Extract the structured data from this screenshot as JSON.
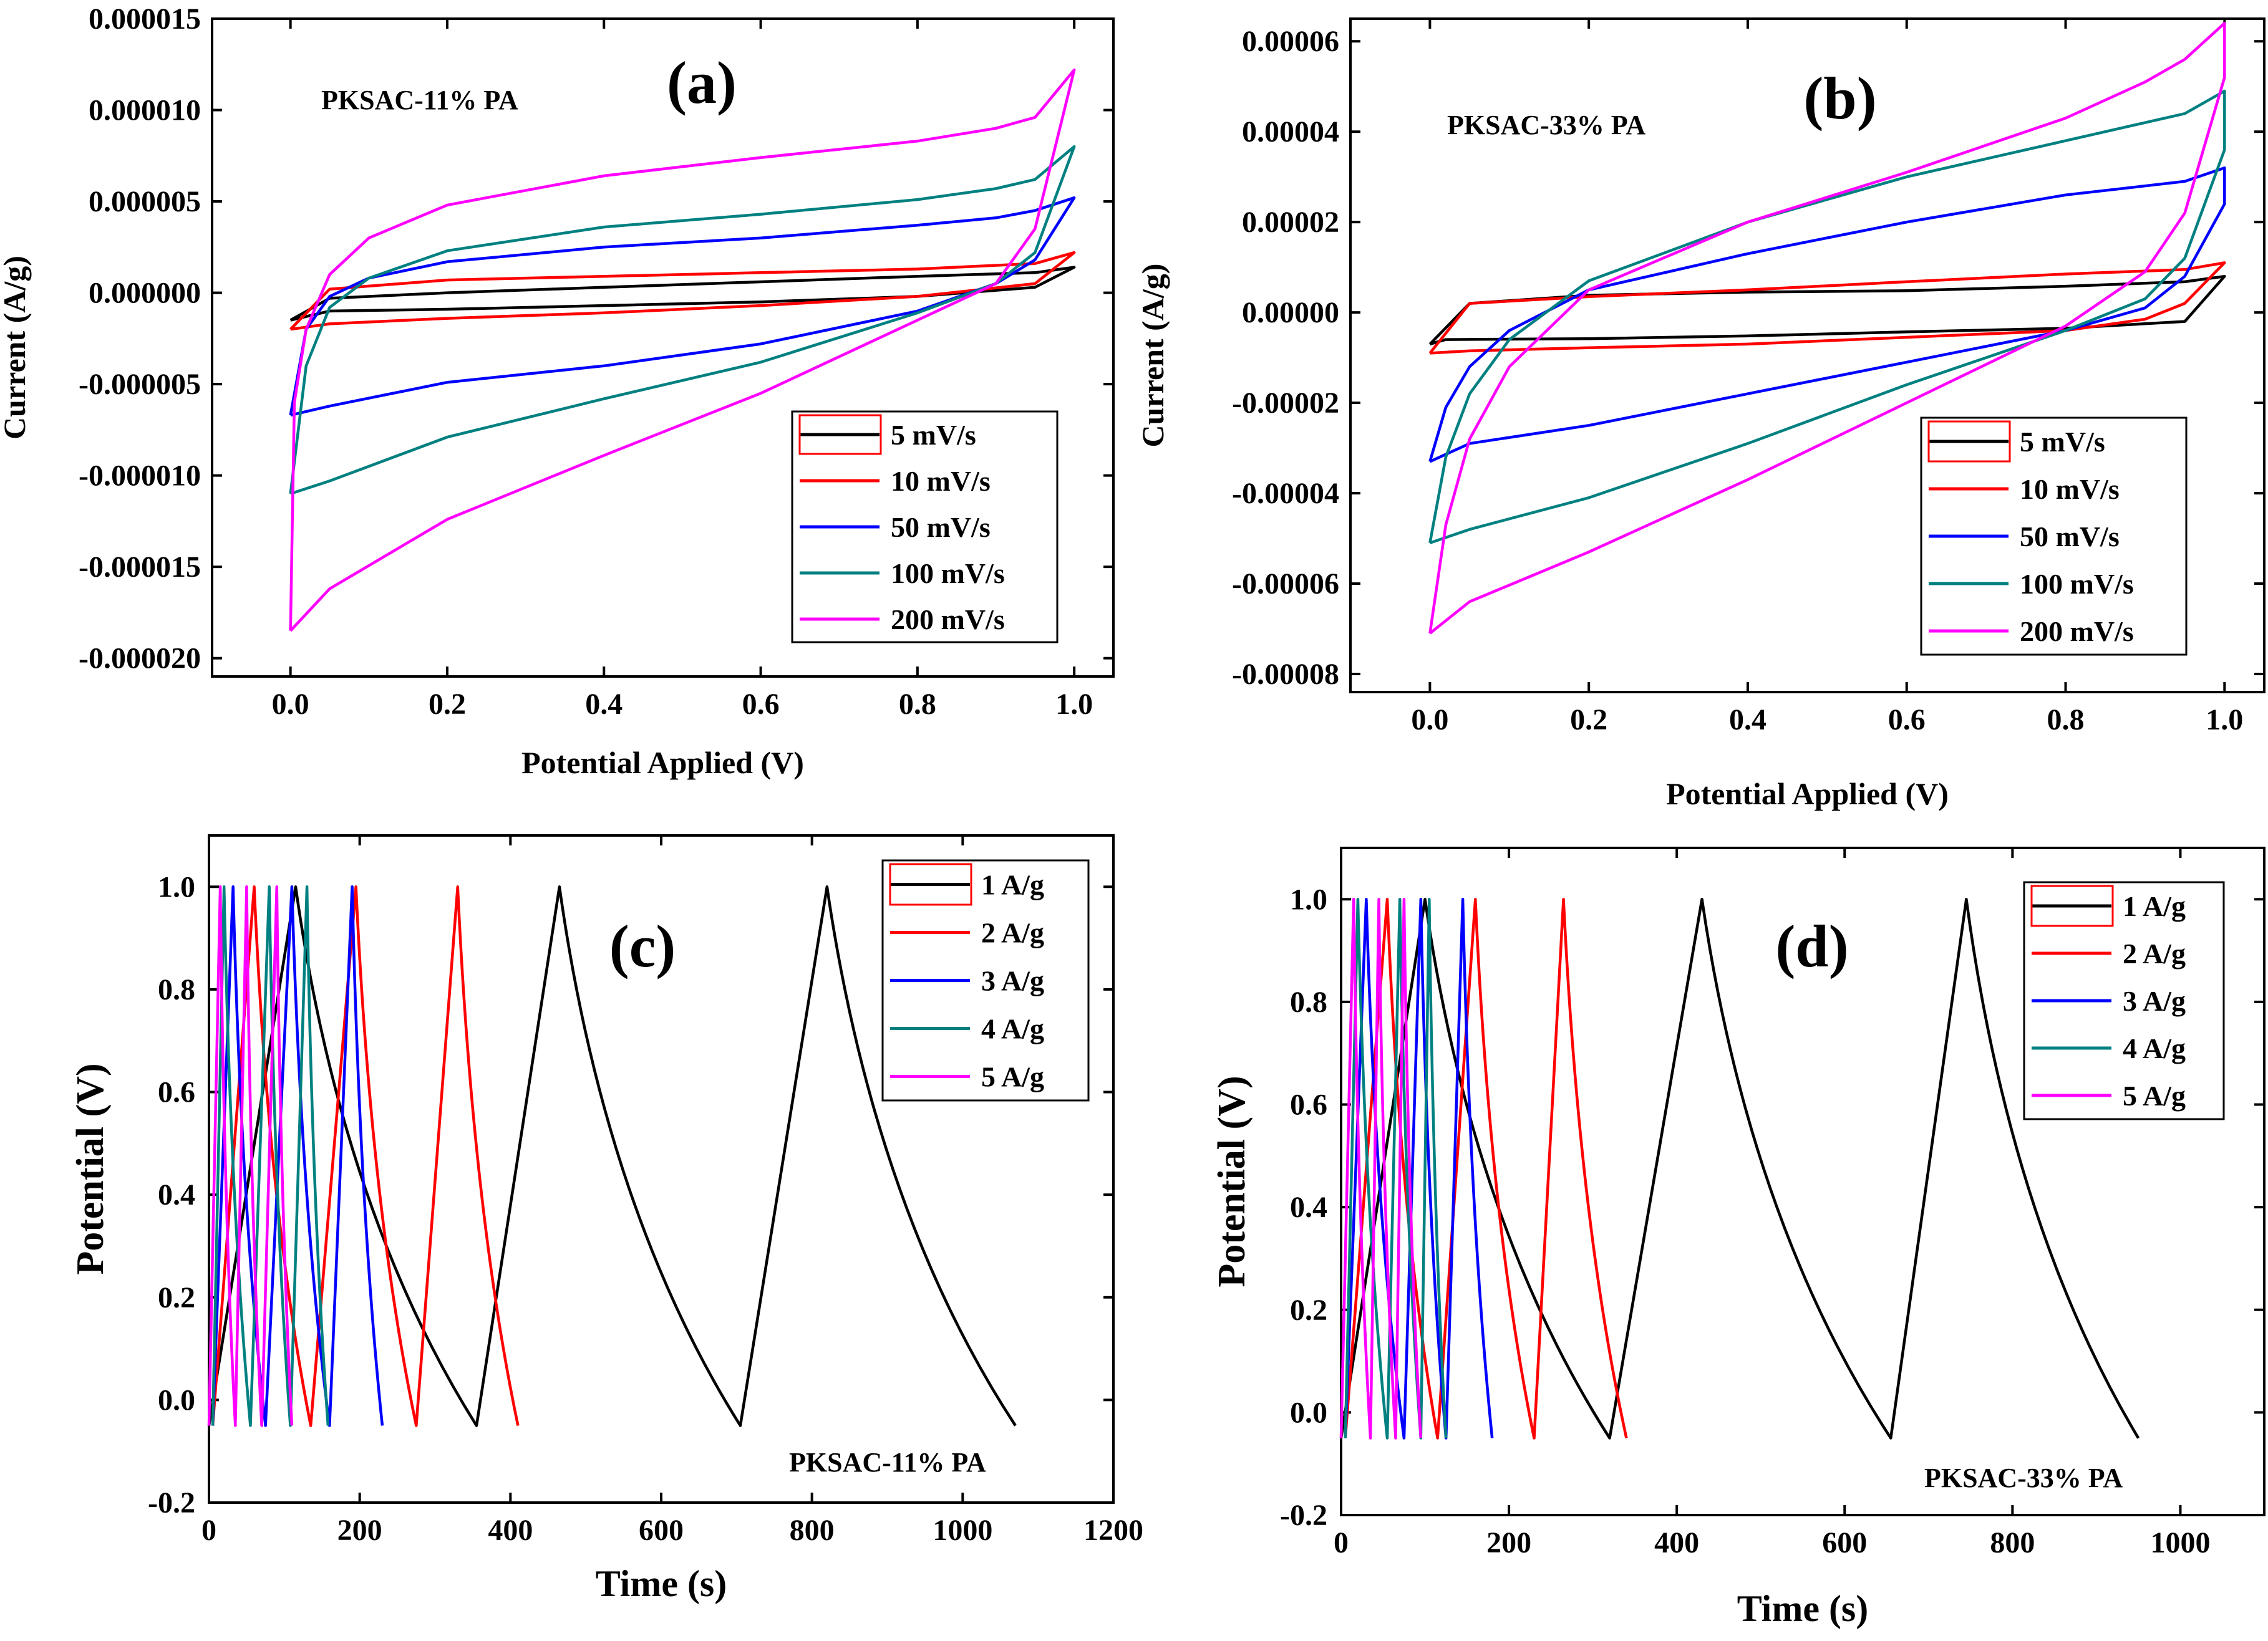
{
  "chart_data": [
    {
      "id": "a",
      "type": "line",
      "panel_label": "(a)",
      "annotation": "PKSAC-11% PA",
      "xlabel": "Potential Applied (V)",
      "ylabel": "Current (A/g)",
      "xlim": [
        -0.1,
        1.05
      ],
      "ylim": [
        -2.1e-05,
        1.5e-05
      ],
      "x_ticks": [
        0.0,
        0.2,
        0.4,
        0.6,
        0.8,
        1.0
      ],
      "x_tick_labels": [
        "0.0",
        "0.2",
        "0.4",
        "0.6",
        "0.8",
        "1.0"
      ],
      "y_ticks": [
        1.5e-05,
        1e-05,
        5e-06,
        0.0,
        -5e-06,
        -1e-05,
        -1.5e-05,
        -2e-05
      ],
      "y_tick_labels": [
        "0.000015",
        "0.000010",
        "0.000005",
        "0.000000",
        "-0.000005",
        "-0.000010",
        "-0.000015",
        "-0.000020"
      ],
      "legend_position": "bottom-right",
      "series": [
        {
          "name": "5 mV/s",
          "color": "#000000",
          "x": [
            0,
            0.05,
            0.2,
            0.4,
            0.6,
            0.8,
            0.95,
            1.0,
            1.0,
            0.95,
            0.8,
            0.6,
            0.4,
            0.2,
            0.05,
            0
          ],
          "y": [
            -1.5e-06,
            -1e-06,
            -9e-07,
            -7e-07,
            -5e-07,
            -2e-07,
            3e-07,
            1.4e-06,
            1.4e-06,
            1.1e-06,
            9e-07,
            6e-07,
            3e-07,
            0.0,
            -3e-07,
            -1.5e-06
          ]
        },
        {
          "name": "10 mV/s",
          "color": "#ff0000",
          "x": [
            0,
            0.05,
            0.2,
            0.4,
            0.6,
            0.8,
            0.95,
            1.0,
            1.0,
            0.95,
            0.8,
            0.6,
            0.4,
            0.2,
            0.05,
            0
          ],
          "y": [
            -2e-06,
            -1.7e-06,
            -1.4e-06,
            -1.1e-06,
            -7e-07,
            -2e-07,
            5e-07,
            2.2e-06,
            2.2e-06,
            1.6e-06,
            1.3e-06,
            1.1e-06,
            9e-07,
            7e-07,
            2e-07,
            -2e-06
          ]
        },
        {
          "name": "50 mV/s",
          "color": "#0000ff",
          "x": [
            0,
            0.05,
            0.2,
            0.4,
            0.6,
            0.8,
            0.9,
            0.95,
            1.0,
            1.0,
            0.95,
            0.9,
            0.8,
            0.6,
            0.4,
            0.2,
            0.1,
            0.05,
            0.02,
            0
          ],
          "y": [
            -6.7e-06,
            -6.2e-06,
            -4.9e-06,
            -4e-06,
            -2.8e-06,
            -1e-06,
            5e-07,
            1.8e-06,
            5.2e-06,
            5.2e-06,
            4.5e-06,
            4.1e-06,
            3.7e-06,
            3e-06,
            2.5e-06,
            1.7e-06,
            8e-07,
            -2e-07,
            -2e-06,
            -6.7e-06
          ]
        },
        {
          "name": "100 mV/s",
          "color": "#008080",
          "x": [
            0,
            0.05,
            0.2,
            0.4,
            0.6,
            0.8,
            0.9,
            0.95,
            1.0,
            1.0,
            0.95,
            0.9,
            0.8,
            0.6,
            0.4,
            0.2,
            0.1,
            0.05,
            0.02,
            0
          ],
          "y": [
            -1.1e-05,
            -1.03e-05,
            -7.9e-06,
            -5.8e-06,
            -3.8e-06,
            -1.1e-06,
            5e-07,
            2.2e-06,
            8e-06,
            8e-06,
            6.2e-06,
            5.7e-06,
            5.1e-06,
            4.3e-06,
            3.6e-06,
            2.3e-06,
            8e-07,
            -8e-07,
            -4e-06,
            -1.1e-05
          ]
        },
        {
          "name": "200 mV/s",
          "color": "#ff00ff",
          "x": [
            0,
            0.05,
            0.2,
            0.4,
            0.6,
            0.8,
            0.9,
            0.95,
            1.0,
            1.0,
            0.95,
            0.9,
            0.8,
            0.6,
            0.4,
            0.2,
            0.1,
            0.05,
            0.02,
            0.005,
            0
          ],
          "y": [
            -1.85e-05,
            -1.62e-05,
            -1.24e-05,
            -8.9e-06,
            -5.5e-06,
            -1.5e-06,
            5e-07,
            3.5e-06,
            1.22e-05,
            1.22e-05,
            9.6e-06,
            9e-06,
            8.3e-06,
            7.4e-06,
            6.4e-06,
            4.8e-06,
            3e-06,
            1e-06,
            -2e-06,
            -6e-06,
            -1.85e-05
          ]
        }
      ]
    },
    {
      "id": "b",
      "type": "line",
      "panel_label": "(b)",
      "annotation": "PKSAC-33% PA",
      "xlabel": "Potential Applied (V)",
      "ylabel": "Current (A/g)",
      "xlim": [
        -0.1,
        1.05
      ],
      "ylim": [
        -8.4e-05,
        6.5e-05
      ],
      "x_ticks": [
        0.0,
        0.2,
        0.4,
        0.6,
        0.8,
        1.0
      ],
      "x_tick_labels": [
        "0.0",
        "0.2",
        "0.4",
        "0.6",
        "0.8",
        "1.0"
      ],
      "y_ticks": [
        6e-05,
        4e-05,
        2e-05,
        0.0,
        -2e-05,
        -4e-05,
        -6e-05,
        -8e-05
      ],
      "y_tick_labels": [
        "0.00006",
        "0.00004",
        "0.00002",
        "0.00000",
        "-0.00002",
        "-0.00004",
        "-0.00006",
        "-0.00008"
      ],
      "legend_position": "bottom-right",
      "series": [
        {
          "name": "5 mV/s",
          "color": "#000000",
          "x": [
            0,
            0.02,
            0.2,
            0.4,
            0.6,
            0.8,
            0.95,
            1.0,
            1.0,
            0.95,
            0.8,
            0.6,
            0.4,
            0.2,
            0.05,
            0
          ],
          "y": [
            -7e-06,
            -6e-06,
            -5.8e-06,
            -5.2e-06,
            -4.3e-06,
            -3.5e-06,
            -2e-06,
            8e-06,
            8e-06,
            6.8e-06,
            5.8e-06,
            4.8e-06,
            4.5e-06,
            3.8e-06,
            2e-06,
            -7e-06
          ]
        },
        {
          "name": "10 mV/s",
          "color": "#ff0000",
          "x": [
            0,
            0.05,
            0.2,
            0.4,
            0.6,
            0.8,
            0.9,
            0.95,
            1.0,
            1.0,
            0.95,
            0.8,
            0.6,
            0.4,
            0.2,
            0.05,
            0
          ],
          "y": [
            -9e-06,
            -8.5e-06,
            -7.8e-06,
            -7e-06,
            -5.5e-06,
            -4e-06,
            -1.5e-06,
            2e-06,
            1.1e-05,
            1.1e-05,
            9.5e-06,
            8.5e-06,
            6.8e-06,
            5e-06,
            3.5e-06,
            2e-06,
            -9e-06
          ]
        },
        {
          "name": "50 mV/s",
          "color": "#0000ff",
          "x": [
            0,
            0.05,
            0.2,
            0.4,
            0.6,
            0.8,
            0.9,
            0.95,
            1.0,
            1.0,
            0.95,
            0.9,
            0.8,
            0.6,
            0.4,
            0.2,
            0.1,
            0.05,
            0.02,
            0
          ],
          "y": [
            -3.3e-05,
            -2.9e-05,
            -2.5e-05,
            -1.8e-05,
            -1.1e-05,
            -4e-06,
            1e-06,
            8e-06,
            2.4e-05,
            3.2e-05,
            2.9e-05,
            2.8e-05,
            2.6e-05,
            2e-05,
            1.3e-05,
            5e-06,
            -4e-06,
            -1.2e-05,
            -2.1e-05,
            -3.3e-05
          ]
        },
        {
          "name": "100 mV/s",
          "color": "#008080",
          "x": [
            0,
            0.05,
            0.2,
            0.4,
            0.6,
            0.8,
            0.9,
            0.95,
            1.0,
            1.0,
            0.95,
            0.9,
            0.8,
            0.6,
            0.4,
            0.2,
            0.1,
            0.05,
            0.02,
            0
          ],
          "y": [
            -5.1e-05,
            -4.8e-05,
            -4.1e-05,
            -2.9e-05,
            -1.6e-05,
            -4e-06,
            3e-06,
            1.2e-05,
            3.6e-05,
            4.9e-05,
            4.4e-05,
            4.2e-05,
            3.8e-05,
            3e-05,
            2e-05,
            7e-06,
            -6e-06,
            -1.8e-05,
            -3.2e-05,
            -5.1e-05
          ]
        },
        {
          "name": "200 mV/s",
          "color": "#ff00ff",
          "x": [
            0,
            0.05,
            0.2,
            0.4,
            0.6,
            0.8,
            0.9,
            0.95,
            1.0,
            1.0,
            0.95,
            0.9,
            0.8,
            0.6,
            0.4,
            0.2,
            0.1,
            0.05,
            0.02,
            0
          ],
          "y": [
            -7.1e-05,
            -6.4e-05,
            -5.3e-05,
            -3.7e-05,
            -2e-05,
            -3e-06,
            9e-06,
            2.2e-05,
            5.2e-05,
            6.4e-05,
            5.6e-05,
            5.1e-05,
            4.3e-05,
            3.1e-05,
            2e-05,
            5e-06,
            -1.2e-05,
            -2.8e-05,
            -4.7e-05,
            -7.1e-05
          ]
        }
      ]
    },
    {
      "id": "c",
      "type": "line",
      "panel_label": "(c)",
      "annotation": "PKSAC-11% PA",
      "xlabel": "Time (s)",
      "ylabel": "Potential (V)",
      "xlim": [
        0,
        1200
      ],
      "ylim": [
        -0.2,
        1.1
      ],
      "x_ticks": [
        0,
        200,
        400,
        600,
        800,
        1000,
        1200
      ],
      "x_tick_labels": [
        "0",
        "200",
        "400",
        "600",
        "800",
        "1000",
        "1200"
      ],
      "y_ticks": [
        -0.2,
        0.0,
        0.2,
        0.4,
        0.6,
        0.8,
        1.0
      ],
      "y_tick_labels": [
        "-0.2",
        "0.0",
        "0.2",
        "0.4",
        "0.6",
        "0.8",
        "1.0"
      ],
      "legend_position": "top-right",
      "series": [
        {
          "name": "1 A/g",
          "color": "#000000",
          "x": [
            0,
            115,
            355,
            465,
            705,
            820,
            1070
          ],
          "y": [
            -0.05,
            1.0,
            -0.05,
            1.0,
            -0.05,
            1.0,
            -0.05
          ]
        },
        {
          "name": "2 A/g",
          "color": "#ff0000",
          "x": [
            5,
            60,
            135,
            195,
            275,
            330,
            410
          ],
          "y": [
            -0.05,
            1.0,
            -0.05,
            1.0,
            -0.05,
            1.0,
            -0.05
          ]
        },
        {
          "name": "3 A/g",
          "color": "#0000ff",
          "x": [
            5,
            32,
            75,
            110,
            160,
            190,
            230
          ],
          "y": [
            -0.05,
            1.0,
            -0.05,
            1.0,
            -0.05,
            1.0,
            -0.05
          ]
        },
        {
          "name": "4 A/g",
          "color": "#008080",
          "x": [
            5,
            20,
            55,
            80,
            108,
            130,
            158
          ],
          "y": [
            -0.05,
            1.0,
            -0.05,
            1.0,
            -0.05,
            1.0,
            -0.05
          ]
        },
        {
          "name": "5 A/g",
          "color": "#ff00ff",
          "x": [
            0,
            15,
            35,
            50,
            70,
            90,
            110
          ],
          "y": [
            -0.05,
            1.0,
            -0.05,
            1.0,
            -0.05,
            1.0,
            -0.05
          ]
        }
      ]
    },
    {
      "id": "d",
      "type": "line",
      "panel_label": "(d)",
      "annotation": "PKSAC-33% PA",
      "xlabel": "Time (s)",
      "ylabel": "Potential (V)",
      "xlim": [
        0,
        1100
      ],
      "ylim": [
        -0.2,
        1.1
      ],
      "x_ticks": [
        0,
        200,
        400,
        600,
        800,
        1000
      ],
      "x_tick_labels": [
        "0",
        "200",
        "400",
        "600",
        "800",
        "1000"
      ],
      "y_ticks": [
        -0.2,
        0.0,
        0.2,
        0.4,
        0.6,
        0.8,
        1.0
      ],
      "y_tick_labels": [
        "-0.2",
        "0.0",
        "0.2",
        "0.4",
        "0.6",
        "0.8",
        "1.0"
      ],
      "legend_position": "top-right",
      "series": [
        {
          "name": "1 A/g",
          "color": "#000000",
          "x": [
            0,
            100,
            320,
            430,
            655,
            745,
            950
          ],
          "y": [
            -0.05,
            1.0,
            -0.05,
            1.0,
            -0.05,
            1.0,
            -0.05
          ]
        },
        {
          "name": "2 A/g",
          "color": "#ff0000",
          "x": [
            5,
            55,
            115,
            160,
            230,
            265,
            340
          ],
          "y": [
            -0.05,
            1.0,
            -0.05,
            1.0,
            -0.05,
            1.0,
            -0.05
          ]
        },
        {
          "name": "3 A/g",
          "color": "#0000ff",
          "x": [
            5,
            30,
            75,
            95,
            125,
            145,
            180
          ],
          "y": [
            -0.05,
            1.0,
            -0.05,
            1.0,
            -0.05,
            1.0,
            -0.05
          ]
        },
        {
          "name": "4 A/g",
          "color": "#008080",
          "x": [
            5,
            20,
            55,
            70,
            95,
            105,
            125
          ],
          "y": [
            -0.05,
            1.0,
            -0.05,
            1.0,
            -0.05,
            1.0,
            -0.05
          ]
        },
        {
          "name": "5 A/g",
          "color": "#ff00ff",
          "x": [
            0,
            15,
            35,
            45,
            65,
            75,
            95
          ],
          "y": [
            -0.05,
            1.0,
            -0.05,
            1.0,
            -0.05,
            1.0,
            -0.05
          ]
        }
      ]
    }
  ]
}
